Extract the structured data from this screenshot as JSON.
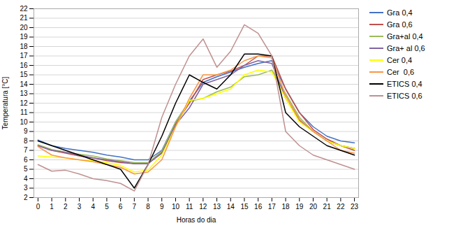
{
  "chart_data": {
    "type": "line",
    "xlabel": "Horas do dia",
    "ylabel": "Temperatura [°C]",
    "x": [
      0,
      1,
      2,
      3,
      4,
      5,
      6,
      7,
      8,
      9,
      10,
      11,
      12,
      13,
      14,
      15,
      16,
      17,
      18,
      19,
      20,
      21,
      22,
      23
    ],
    "xlim": [
      -0.3,
      23.3
    ],
    "xticks": [
      0,
      1,
      2,
      3,
      4,
      5,
      6,
      7,
      8,
      9,
      10,
      11,
      12,
      13,
      14,
      15,
      16,
      17,
      18,
      19,
      20,
      21,
      22,
      23
    ],
    "ylim": [
      2,
      22
    ],
    "yticks": [
      2,
      3,
      4,
      5,
      6,
      7,
      8,
      9,
      10,
      11,
      12,
      13,
      14,
      15,
      16,
      17,
      18,
      19,
      20,
      21,
      22
    ],
    "grid": true,
    "legend": "right",
    "series": [
      {
        "name": "Gra 0,4",
        "color": "#4472C4",
        "values": [
          8.1,
          7.5,
          7.2,
          7.0,
          6.8,
          6.5,
          6.3,
          6.0,
          6.0,
          7.0,
          10.0,
          12.2,
          14.2,
          14.8,
          15.3,
          15.8,
          16.2,
          16.5,
          13.5,
          11.0,
          9.5,
          8.5,
          8.0,
          7.8
        ]
      },
      {
        "name": "Gra 0,6",
        "color": "#C0504D",
        "values": [
          7.5,
          7.0,
          6.7,
          6.4,
          6.2,
          5.9,
          5.7,
          5.6,
          5.6,
          6.8,
          9.8,
          12.0,
          14.5,
          15.0,
          15.4,
          16.0,
          17.0,
          17.0,
          13.5,
          11.0,
          9.2,
          8.2,
          7.5,
          7.0
        ]
      },
      {
        "name": "Gra+al 0,4",
        "color": "#9BBB59",
        "values": [
          7.6,
          7.1,
          6.8,
          6.6,
          6.4,
          6.1,
          5.9,
          5.7,
          5.7,
          6.9,
          10.0,
          12.2,
          12.5,
          13.2,
          13.7,
          14.8,
          15.0,
          15.5,
          13.0,
          10.5,
          9.0,
          8.0,
          7.5,
          7.2
        ]
      },
      {
        "name": "Gra+ al 0,6",
        "color": "#8064A2",
        "values": [
          7.5,
          7.0,
          6.8,
          6.5,
          6.2,
          6.0,
          5.8,
          5.6,
          5.6,
          6.7,
          9.7,
          11.5,
          14.0,
          14.5,
          15.0,
          16.0,
          16.5,
          16.2,
          12.5,
          10.2,
          9.0,
          8.0,
          7.5,
          7.2
        ]
      },
      {
        "name": "Cer 0,4",
        "color": "#FFFF00",
        "values": [
          6.4,
          6.3,
          6.2,
          6.0,
          5.9,
          5.7,
          5.4,
          4.7,
          4.9,
          6.5,
          9.5,
          12.3,
          12.5,
          13.0,
          13.5,
          15.0,
          15.5,
          15.3,
          12.5,
          10.0,
          9.0,
          8.0,
          7.5,
          7.2
        ]
      },
      {
        "name": "Cer  0,6",
        "color": "#F79646",
        "values": [
          7.4,
          6.5,
          6.2,
          6.0,
          5.8,
          5.5,
          5.2,
          4.5,
          4.7,
          6.0,
          9.5,
          12.5,
          15.0,
          15.0,
          15.5,
          16.5,
          17.0,
          16.8,
          12.8,
          10.3,
          9.0,
          8.0,
          7.0,
          6.7
        ]
      },
      {
        "name": "ETICS 0,4",
        "color": "#000000",
        "values": [
          8.0,
          7.5,
          7.0,
          6.5,
          6.0,
          5.5,
          5.0,
          3.0,
          5.5,
          8.5,
          12.0,
          15.0,
          14.2,
          13.5,
          15.0,
          17.2,
          17.2,
          17.0,
          11.0,
          9.5,
          8.5,
          7.5,
          7.0,
          6.5
        ]
      },
      {
        "name": "ETICS 0,6",
        "color": "#C09090",
        "values": [
          5.5,
          4.8,
          4.9,
          4.5,
          4.0,
          3.8,
          3.5,
          2.7,
          5.5,
          10.5,
          14.0,
          17.0,
          18.8,
          15.8,
          17.5,
          20.3,
          19.4,
          17.0,
          9.0,
          7.5,
          6.5,
          6.0,
          5.5,
          5.0
        ]
      }
    ]
  }
}
